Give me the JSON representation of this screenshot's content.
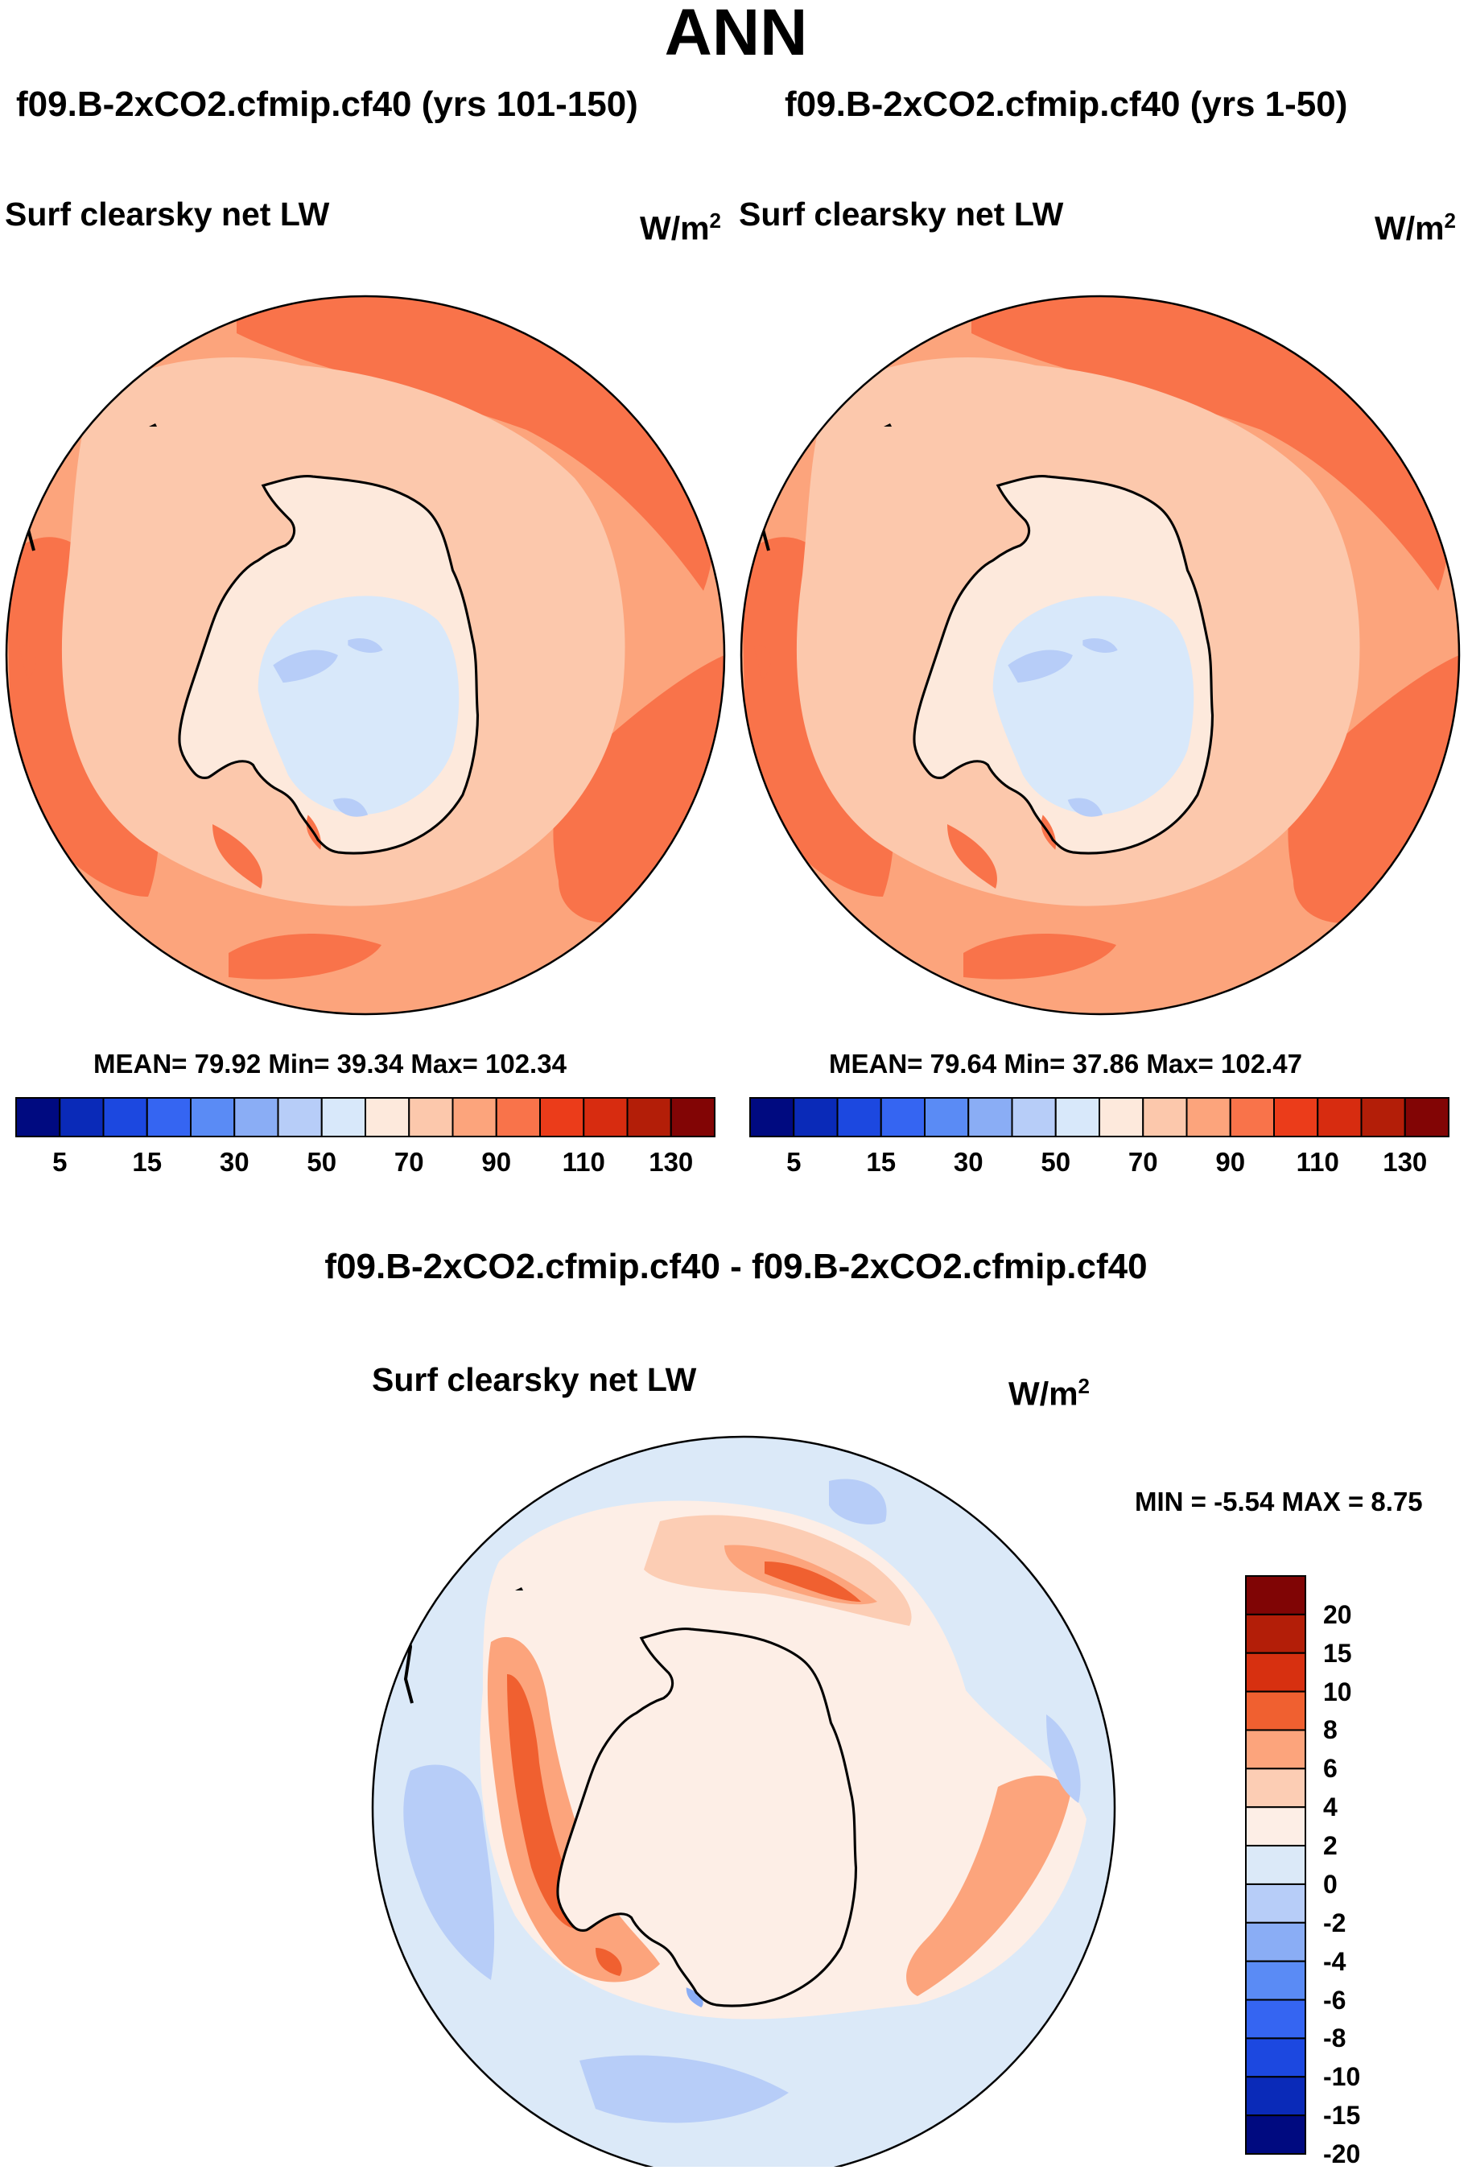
{
  "title": "ANN",
  "panels": [
    {
      "case_title": "f09.B-2xCO2.cfmip.cf40 (yrs 101-150)",
      "variable": "Surf clearsky net LW",
      "units": "W/m",
      "units_exp": "2",
      "stats": {
        "mean": "79.92",
        "min": "39.34",
        "max": "102.34"
      },
      "stats_text": "MEAN=  79.92  Min=  39.34  Max= 102.34"
    },
    {
      "case_title": "f09.B-2xCO2.cfmip.cf40 (yrs 1-50)",
      "variable": "Surf clearsky net LW",
      "units": "W/m",
      "units_exp": "2",
      "stats": {
        "mean": "79.64",
        "min": "37.86",
        "max": "102.47"
      },
      "stats_text": "MEAN=  79.64  Min=  37.86  Max= 102.47"
    }
  ],
  "abs_colorbar": {
    "colors": [
      "#000a80",
      "#0a2ab8",
      "#1c48e0",
      "#3565f2",
      "#5a8bf5",
      "#8aadf5",
      "#b7cdf8",
      "#d8e8fa",
      "#fde9dc",
      "#fcc8ac",
      "#fca47c",
      "#f9734a",
      "#eb3c1a",
      "#d72c10",
      "#b31e08",
      "#820505"
    ],
    "ticks": [
      "5",
      "15",
      "30",
      "50",
      "70",
      "90",
      "110",
      "130"
    ]
  },
  "diff": {
    "title": "f09.B-2xCO2.cfmip.cf40 - f09.B-2xCO2.cfmip.cf40",
    "variable": "Surf clearsky net LW",
    "units": "W/m",
    "units_exp": "2",
    "stats_text": "MIN =  -5.54  MAX =   8.75",
    "stats": {
      "min": "-5.54",
      "max": "8.75"
    },
    "colorbar": {
      "colors": [
        "#800505",
        "#b31e08",
        "#d73010",
        "#f06030",
        "#fca47c",
        "#fccdb4",
        "#fdeee6",
        "#dbe9f8",
        "#b7cdf8",
        "#8aadf5",
        "#5a8bf5",
        "#3565f2",
        "#1c48e0",
        "#0a2ab8",
        "#000a80"
      ],
      "labels": [
        "20",
        "15",
        "10",
        "8",
        "6",
        "4",
        "2",
        "0",
        "-2",
        "-4",
        "-6",
        "-8",
        "-10",
        "-15",
        "-20"
      ]
    }
  },
  "chart_data": [
    {
      "type": "map",
      "projection": "south-polar-stereographic",
      "title": "f09.B-2xCO2.cfmip.cf40 (yrs 101-150)",
      "variable": "Surf clearsky net LW",
      "units": "W/m2",
      "mean": 79.92,
      "min": 39.34,
      "max": 102.34,
      "contour_levels": [
        5,
        10,
        15,
        20,
        30,
        40,
        50,
        60,
        70,
        80,
        90,
        100,
        110,
        120,
        130
      ]
    },
    {
      "type": "map",
      "projection": "south-polar-stereographic",
      "title": "f09.B-2xCO2.cfmip.cf40 (yrs 1-50)",
      "variable": "Surf clearsky net LW",
      "units": "W/m2",
      "mean": 79.64,
      "min": 37.86,
      "max": 102.47,
      "contour_levels": [
        5,
        10,
        15,
        20,
        30,
        40,
        50,
        60,
        70,
        80,
        90,
        100,
        110,
        120,
        130
      ]
    },
    {
      "type": "map",
      "projection": "south-polar-stereographic",
      "title": "f09.B-2xCO2.cfmip.cf40 - f09.B-2xCO2.cfmip.cf40",
      "variable": "Surf clearsky net LW",
      "units": "W/m2",
      "min": -5.54,
      "max": 8.75,
      "contour_levels": [
        -20,
        -15,
        -10,
        -8,
        -6,
        -4,
        -2,
        0,
        2,
        4,
        6,
        8,
        10,
        15,
        20
      ]
    }
  ]
}
